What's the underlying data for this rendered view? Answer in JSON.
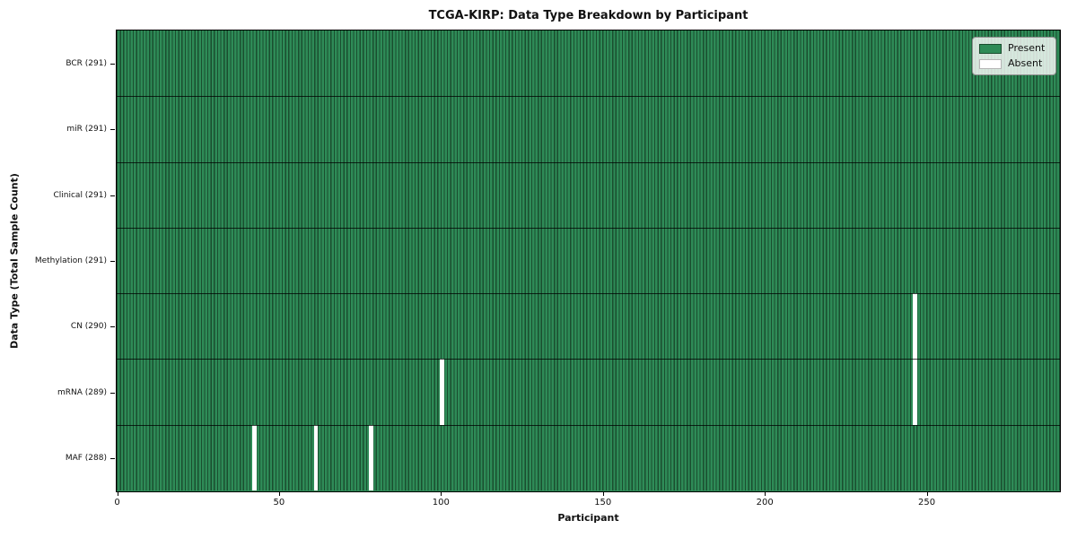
{
  "title": "TCGA-KIRP: Data Type Breakdown by Participant",
  "axes": {
    "x_label": "Participant",
    "y_label": "Data Type (Total Sample Count)"
  },
  "legend": {
    "present_label": "Present",
    "absent_label": "Absent"
  },
  "colors": {
    "present": "#2e8b57",
    "present_edge": "#1a4e2f",
    "absent": "#ffffff",
    "legend_border": "#8f8f8f"
  },
  "chart_data": {
    "type": "heatmap",
    "title": "TCGA-KIRP: Data Type Breakdown by Participant",
    "xlabel": "Participant",
    "ylabel": "Data Type (Total Sample Count)",
    "n_participants": 291,
    "xlim": [
      0,
      291
    ],
    "x_ticks": [
      0,
      50,
      100,
      150,
      200,
      250
    ],
    "grid": false,
    "legend_entries": [
      "Present",
      "Absent"
    ],
    "legend_position": "upper right",
    "rows": [
      {
        "label": "BCR (291)",
        "data_type": "BCR",
        "present_count": 291,
        "absent_participants": []
      },
      {
        "label": "miR (291)",
        "data_type": "miR",
        "present_count": 291,
        "absent_participants": []
      },
      {
        "label": "Clinical (291)",
        "data_type": "Clinical",
        "present_count": 291,
        "absent_participants": []
      },
      {
        "label": "Methylation (291)",
        "data_type": "Methylation",
        "present_count": 291,
        "absent_participants": []
      },
      {
        "label": "CN (290)",
        "data_type": "CN",
        "present_count": 290,
        "absent_participants": [
          246
        ]
      },
      {
        "label": "mRNA (289)",
        "data_type": "mRNA",
        "present_count": 289,
        "absent_participants": [
          100,
          246
        ]
      },
      {
        "label": "MAF (288)",
        "data_type": "MAF",
        "present_count": 288,
        "absent_participants": [
          42,
          61,
          78
        ]
      }
    ]
  }
}
